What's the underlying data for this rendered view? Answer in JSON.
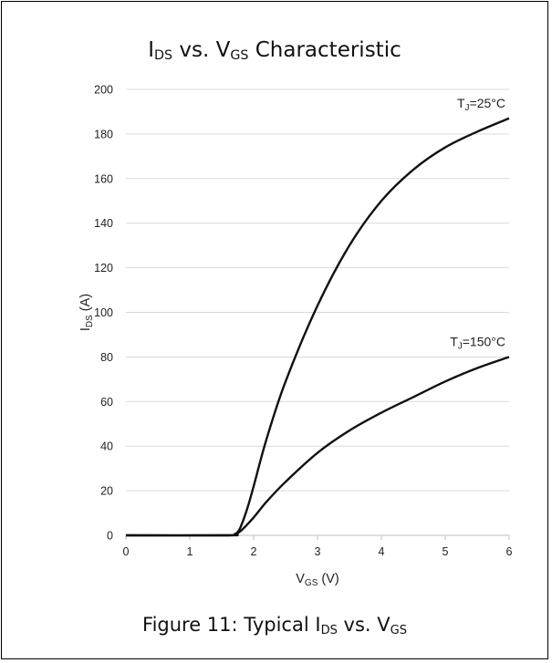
{
  "chart_data": {
    "type": "line",
    "title": {
      "pre": "I",
      "sub1": "DS",
      "mid": " vs. V",
      "sub2": "GS",
      "post": " Characteristic"
    },
    "caption": {
      "pre": "Figure 11: Typical I",
      "sub1": "DS",
      "mid": " vs. V",
      "sub2": "GS"
    },
    "xlabel": {
      "main": "V",
      "sub": "GS",
      "unit": " (V)"
    },
    "ylabel": {
      "main": "I",
      "sub": "DS",
      "unit": " (A)"
    },
    "xlim": [
      0,
      6
    ],
    "ylim": [
      0,
      200
    ],
    "xticks": [
      0,
      1,
      2,
      3,
      4,
      5,
      6
    ],
    "yticks": [
      0,
      20,
      40,
      60,
      80,
      100,
      120,
      140,
      160,
      180,
      200
    ],
    "grid": "horizontal",
    "series": [
      {
        "name": {
          "main": "T",
          "sub": "J",
          "rest": "=25°C"
        },
        "color": "#111111",
        "points": [
          [
            0,
            0
          ],
          [
            1.6,
            0
          ],
          [
            1.7,
            0.5
          ],
          [
            1.75,
            1.5
          ],
          [
            1.8,
            4
          ],
          [
            1.9,
            12
          ],
          [
            2.0,
            22
          ],
          [
            2.2,
            43
          ],
          [
            2.5,
            69
          ],
          [
            3.0,
            103
          ],
          [
            3.5,
            130
          ],
          [
            4.0,
            150
          ],
          [
            4.5,
            164
          ],
          [
            5.0,
            174
          ],
          [
            5.5,
            181
          ],
          [
            6.0,
            187
          ]
        ]
      },
      {
        "name": {
          "main": "T",
          "sub": "J",
          "rest": "=150°C"
        },
        "color": "#111111",
        "points": [
          [
            0,
            0
          ],
          [
            1.6,
            0
          ],
          [
            1.7,
            0.3
          ],
          [
            1.8,
            2
          ],
          [
            2.0,
            8
          ],
          [
            2.2,
            15
          ],
          [
            2.5,
            24
          ],
          [
            3.0,
            37
          ],
          [
            3.5,
            47
          ],
          [
            4.0,
            55
          ],
          [
            4.5,
            62
          ],
          [
            5.0,
            69
          ],
          [
            5.5,
            75
          ],
          [
            6.0,
            80
          ]
        ]
      }
    ]
  }
}
